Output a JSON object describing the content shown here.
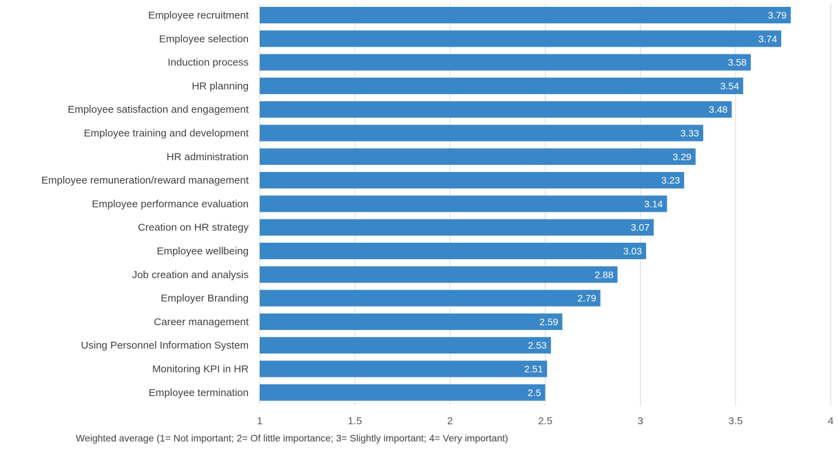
{
  "chart_data": {
    "type": "bar",
    "orientation": "horizontal",
    "categories": [
      "Employee recruitment",
      "Employee selection",
      "Induction process",
      "HR planning",
      "Employee satisfaction and engagement",
      "Employee training and development",
      "HR administration",
      "Employee remuneration/reward management",
      "Employee performance evaluation",
      "Creation on HR strategy",
      "Employee wellbeing",
      "Job creation and analysis",
      "Employer Branding",
      "Career management",
      "Using Personnel Information System",
      "Monitoring KPI in HR",
      "Employee termination"
    ],
    "values": [
      3.79,
      3.74,
      3.58,
      3.54,
      3.48,
      3.33,
      3.29,
      3.23,
      3.14,
      3.07,
      3.03,
      2.88,
      2.79,
      2.59,
      2.53,
      2.51,
      2.5
    ],
    "value_labels": [
      "3.79",
      "3.74",
      "3.58",
      "3.54",
      "3.48",
      "3.33",
      "3.29",
      "3.23",
      "3.14",
      "3.07",
      "3.03",
      "2.88",
      "2.79",
      "2.59",
      "2.53",
      "2.51",
      "2.5"
    ],
    "xlabel": "Weighted average (1= Not important; 2= Of little importance; 3= Slightly important; 4= Very important)",
    "xlim": [
      1,
      4
    ],
    "xticks": [
      "1",
      "1.5",
      "2",
      "2.5",
      "3",
      "3.5",
      "4"
    ],
    "xtick_values": [
      1,
      1.5,
      2,
      2.5,
      3,
      3.5,
      4
    ],
    "grid": "vertical",
    "legend": "none",
    "colors": {
      "bar": "#3a87c8",
      "grid": "#d9d9d9",
      "value_text": "#ffffff"
    }
  }
}
